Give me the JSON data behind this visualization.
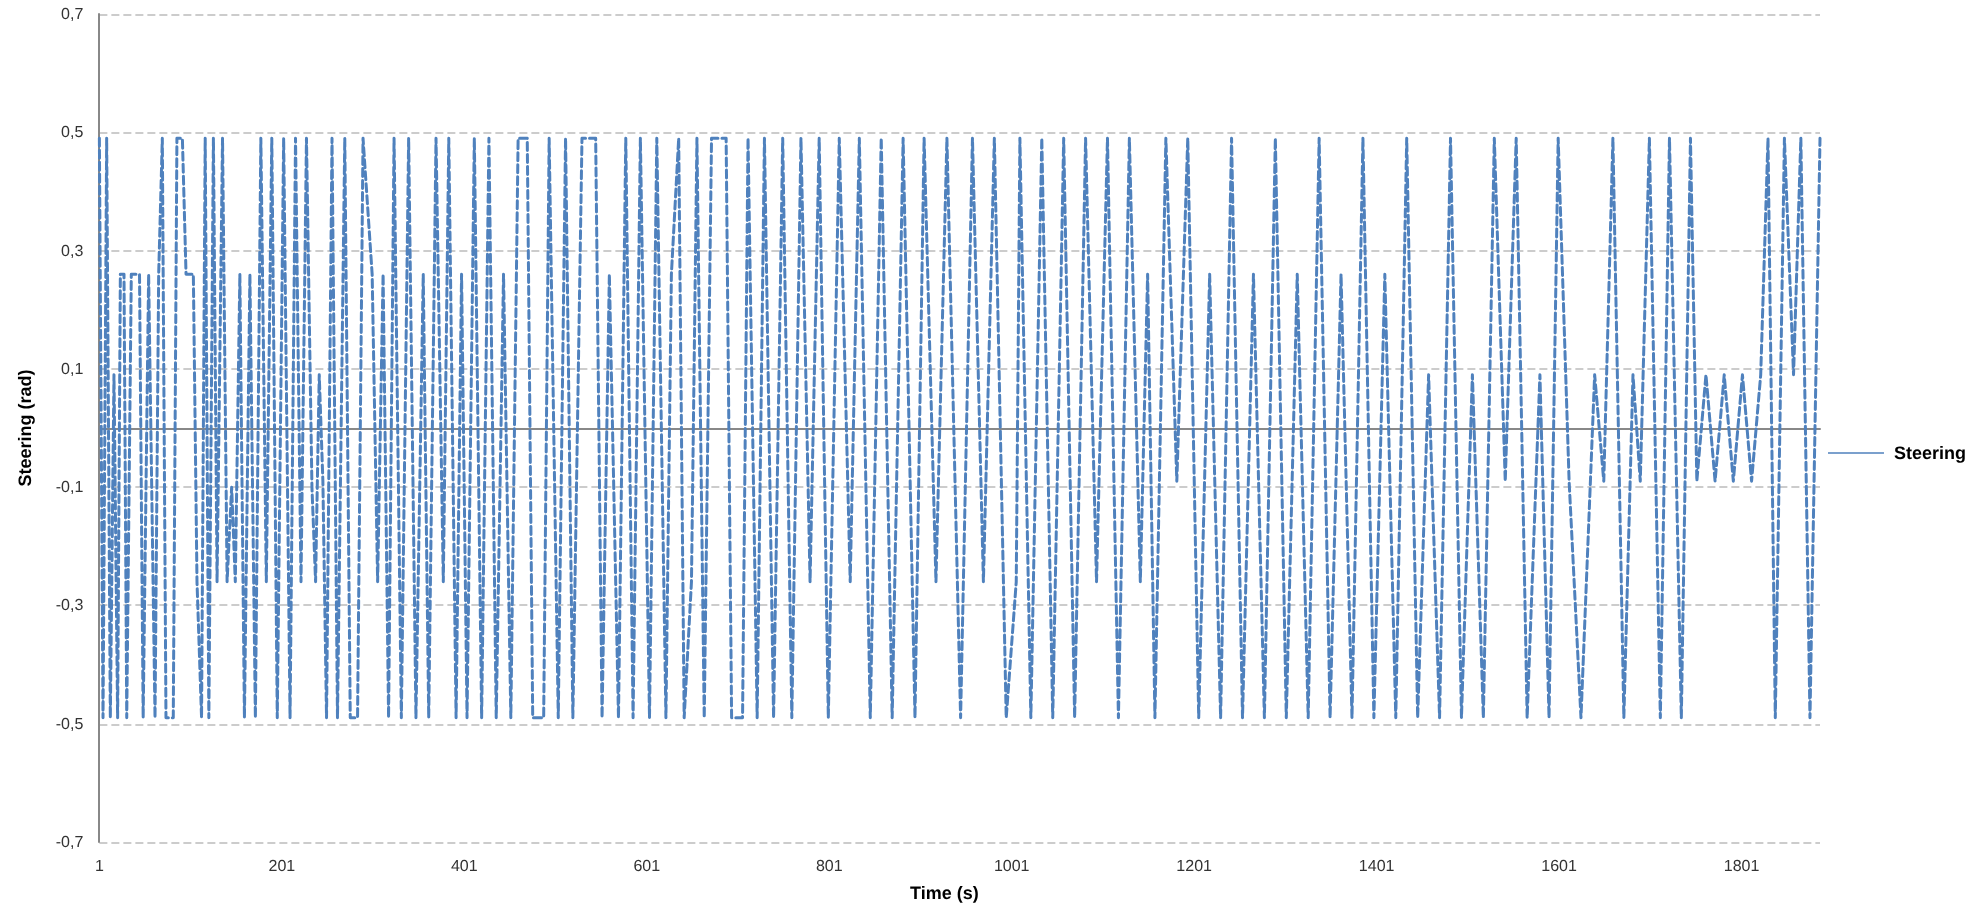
{
  "chart_data": {
    "type": "line",
    "xlabel": "Time (s)",
    "ylabel": "Steering (rad)",
    "xlim": [
      1,
      1887
    ],
    "xticks": [
      1,
      201,
      401,
      601,
      801,
      1001,
      1201,
      1401,
      1601,
      1801
    ],
    "ylim": [
      -0.7,
      0.7
    ],
    "yticks": [
      {
        "value": -0.7,
        "label": "-0,7"
      },
      {
        "value": -0.5,
        "label": "-0,5"
      },
      {
        "value": -0.3,
        "label": "-0,3"
      },
      {
        "value": -0.1,
        "label": "-0,1"
      },
      {
        "value": 0.1,
        "label": "0,1"
      },
      {
        "value": 0.3,
        "label": "0,3"
      },
      {
        "value": 0.5,
        "label": "0,5"
      },
      {
        "value": 0.7,
        "label": "0,7"
      }
    ],
    "grid": "y",
    "legend": "right",
    "marker": "none",
    "line_style": "dashed",
    "series": [
      {
        "name": "Steering",
        "color": "#4f81bd",
        "x": [
          1,
          5,
          9,
          13,
          17,
          21,
          24,
          28,
          31,
          36,
          45,
          49,
          55,
          62,
          66,
          70,
          74,
          82,
          86,
          92,
          96,
          104,
          108,
          113,
          117,
          121,
          126,
          130,
          136,
          141,
          146,
          150,
          155,
          160,
          166,
          172,
          178,
          184,
          190,
          196,
          203,
          210,
          216,
          222,
          228,
          234,
          238,
          242,
          246,
          250,
          256,
          262,
          270,
          276,
          284,
          290,
          300,
          306,
          312,
          318,
          324,
          332,
          340,
          348,
          356,
          362,
          370,
          378,
          384,
          392,
          398,
          404,
          412,
          420,
          428,
          436,
          444,
          452,
          460,
          470,
          476,
          488,
          494,
          504,
          512,
          520,
          530,
          545,
          552,
          560,
          570,
          578,
          586,
          594,
          604,
          612,
          622,
          628,
          636,
          642,
          650,
          656,
          664,
          672,
          688,
          694,
          706,
          712,
          722,
          730,
          740,
          750,
          760,
          770,
          780,
          790,
          800,
          812,
          824,
          834,
          846,
          858,
          870,
          882,
          895,
          905,
          918,
          930,
          945,
          958,
          970,
          982,
          995,
          1006,
          1010,
          1022,
          1034,
          1046,
          1058,
          1070,
          1082,
          1094,
          1106,
          1118,
          1130,
          1142,
          1150,
          1158,
          1170,
          1182,
          1194,
          1206,
          1218,
          1230,
          1242,
          1254,
          1266,
          1278,
          1290,
          1302,
          1314,
          1326,
          1338,
          1350,
          1362,
          1374,
          1386,
          1398,
          1410,
          1422,
          1434,
          1446,
          1458,
          1470,
          1482,
          1494,
          1506,
          1518,
          1530,
          1542,
          1554,
          1566,
          1580,
          1590,
          1600,
          1612,
          1625,
          1640,
          1650,
          1660,
          1672,
          1682,
          1690,
          1700,
          1712,
          1722,
          1735,
          1745,
          1752,
          1762,
          1772,
          1782,
          1792,
          1802,
          1812,
          1822,
          1830,
          1838,
          1848,
          1858,
          1866,
          1876,
          1887
        ],
        "values": [
          0.49,
          -0.49,
          0.49,
          -0.49,
          0.09,
          -0.49,
          0.26,
          0.26,
          -0.49,
          0.26,
          0.26,
          -0.49,
          0.26,
          -0.49,
          0.26,
          0.49,
          -0.49,
          -0.49,
          0.49,
          0.49,
          0.26,
          0.26,
          -0.26,
          -0.49,
          0.49,
          -0.49,
          0.49,
          -0.26,
          0.49,
          -0.26,
          -0.1,
          -0.26,
          0.26,
          -0.49,
          0.26,
          -0.49,
          0.49,
          -0.26,
          0.49,
          -0.49,
          0.49,
          -0.49,
          0.49,
          -0.26,
          0.49,
          -0.1,
          -0.26,
          0.09,
          -0.09,
          -0.49,
          0.49,
          -0.49,
          0.49,
          -0.49,
          -0.49,
          0.49,
          0.26,
          -0.26,
          0.26,
          -0.49,
          0.49,
          -0.49,
          0.49,
          -0.49,
          0.26,
          -0.49,
          0.49,
          -0.26,
          0.49,
          -0.49,
          0.26,
          -0.49,
          0.49,
          -0.49,
          0.49,
          -0.49,
          0.26,
          -0.49,
          0.49,
          0.49,
          -0.49,
          -0.49,
          0.49,
          -0.49,
          0.49,
          -0.49,
          0.49,
          0.49,
          -0.49,
          0.26,
          -0.49,
          0.49,
          -0.49,
          0.49,
          -0.49,
          0.49,
          -0.49,
          0.26,
          0.49,
          -0.49,
          -0.26,
          0.49,
          -0.49,
          0.49,
          0.49,
          -0.49,
          -0.49,
          0.49,
          -0.49,
          0.49,
          -0.49,
          0.49,
          -0.49,
          0.49,
          -0.26,
          0.49,
          -0.49,
          0.49,
          -0.26,
          0.49,
          -0.49,
          0.49,
          -0.49,
          0.49,
          -0.49,
          0.49,
          -0.26,
          0.49,
          -0.49,
          0.49,
          -0.26,
          0.49,
          -0.49,
          -0.26,
          0.49,
          -0.49,
          0.49,
          -0.49,
          0.49,
          -0.49,
          0.49,
          -0.26,
          0.49,
          -0.49,
          0.49,
          -0.26,
          0.26,
          -0.49,
          0.49,
          -0.09,
          0.49,
          -0.49,
          0.26,
          -0.49,
          0.49,
          -0.49,
          0.26,
          -0.49,
          0.49,
          -0.49,
          0.26,
          -0.49,
          0.49,
          -0.49,
          0.26,
          -0.49,
          0.49,
          -0.49,
          0.26,
          -0.49,
          0.49,
          -0.49,
          0.09,
          -0.49,
          0.49,
          -0.49,
          0.09,
          -0.49,
          0.49,
          -0.09,
          0.49,
          -0.49,
          0.09,
          -0.49,
          0.49,
          -0.09,
          -0.49,
          0.09,
          -0.09,
          0.49,
          -0.49,
          0.09,
          -0.09,
          0.49,
          -0.49,
          0.49,
          -0.49,
          0.49,
          -0.09,
          0.09,
          -0.09,
          0.09,
          -0.09,
          0.09,
          -0.09,
          0.09,
          0.49,
          -0.49,
          0.49,
          0.09,
          0.49,
          -0.49,
          0.49
        ]
      }
    ]
  }
}
